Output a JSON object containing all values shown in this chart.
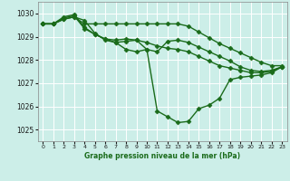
{
  "xlabel": "Graphe pression niveau de la mer (hPa)",
  "background_color": "#cceee8",
  "line_color": "#1a6b1a",
  "marker": "D",
  "markersize": 2.5,
  "linewidth": 1.0,
  "ylim": [
    1024.5,
    1030.5
  ],
  "xlim": [
    -0.5,
    23.5
  ],
  "yticks": [
    1025,
    1026,
    1027,
    1028,
    1029,
    1030
  ],
  "xticks": [
    0,
    1,
    2,
    3,
    4,
    5,
    6,
    7,
    8,
    9,
    10,
    11,
    12,
    13,
    14,
    15,
    16,
    17,
    18,
    19,
    20,
    21,
    22,
    23
  ],
  "series": [
    [
      1029.55,
      1029.55,
      1029.75,
      1029.85,
      1029.55,
      1029.55,
      1029.55,
      1029.55,
      1029.55,
      1029.55,
      1029.55,
      1029.55,
      1029.55,
      1029.55,
      1029.45,
      1029.2,
      1028.95,
      1028.7,
      1028.5,
      1028.3,
      1028.1,
      1027.9,
      1027.75,
      1027.75
    ],
    [
      1029.55,
      1029.55,
      1029.75,
      1029.85,
      1029.7,
      1029.15,
      1028.85,
      1028.75,
      1028.8,
      1028.85,
      1028.75,
      1028.6,
      1028.5,
      1028.45,
      1028.35,
      1028.15,
      1027.95,
      1027.75,
      1027.65,
      1027.55,
      1027.45,
      1027.45,
      1027.5,
      1027.7
    ],
    [
      1029.55,
      1029.55,
      1029.8,
      1029.9,
      1029.35,
      1029.1,
      1028.9,
      1028.85,
      1028.9,
      1028.85,
      1028.45,
      1028.35,
      1028.8,
      1028.85,
      1028.75,
      1028.55,
      1028.35,
      1028.15,
      1027.95,
      1027.7,
      1027.55,
      1027.5,
      1027.55,
      1027.7
    ],
    [
      1029.55,
      1029.55,
      1029.85,
      1029.95,
      1029.4,
      1029.1,
      1028.9,
      1028.75,
      1028.45,
      1028.35,
      1028.45,
      1025.8,
      1025.55,
      1025.3,
      1025.35,
      1025.9,
      1026.05,
      1026.35,
      1027.15,
      1027.25,
      1027.3,
      1027.35,
      1027.45,
      1027.7
    ]
  ]
}
